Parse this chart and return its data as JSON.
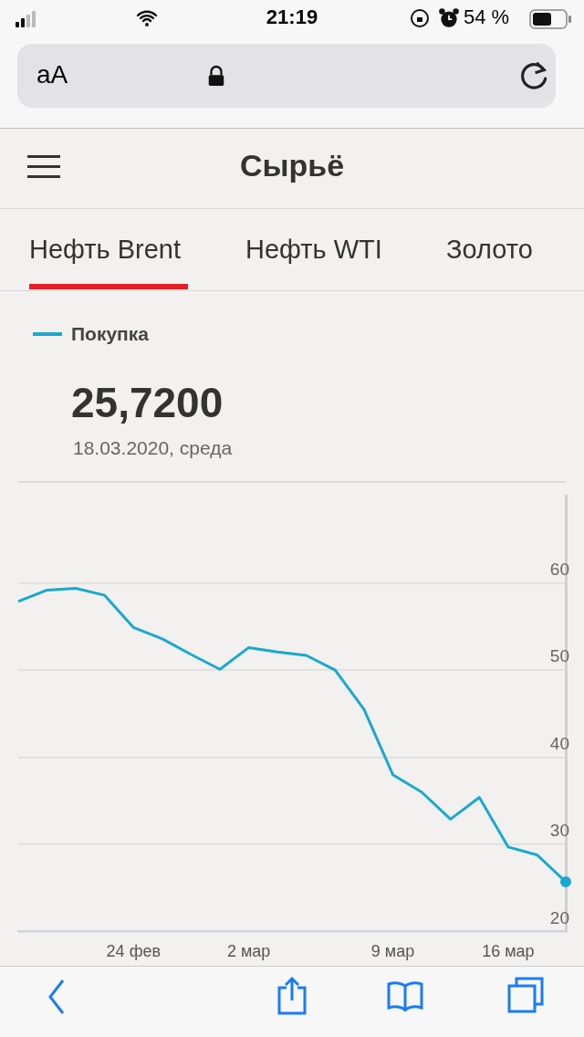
{
  "chart_data": {
    "type": "line",
    "title": "Сырьё",
    "categories": [
      null,
      null,
      null,
      null,
      "24 фев",
      null,
      null,
      null,
      "2 мар",
      null,
      null,
      null,
      null,
      "9 мар",
      null,
      null,
      null,
      "16 мар",
      null,
      null
    ],
    "series": [
      {
        "name": "Покупка",
        "color": "#1aa8cf",
        "values": [
          57.9,
          59.2,
          59.4,
          58.6,
          54.9,
          53.6,
          51.8,
          50.1,
          52.6,
          52.1,
          51.7,
          50.0,
          45.5,
          38.0,
          36.0,
          32.9,
          35.4,
          29.7,
          28.8,
          25.7
        ]
      }
    ],
    "ylim": [
      20,
      70
    ],
    "yticks": [
      20,
      30,
      40,
      50,
      60
    ],
    "grid": "y",
    "legend": "top left",
    "annotations": [
      "21:19",
      "54 %",
      "aA",
      "Нефть Brent",
      "Нефть WTI",
      "Золото",
      "25,7200",
      "18.03.2020, среда"
    ]
  }
}
